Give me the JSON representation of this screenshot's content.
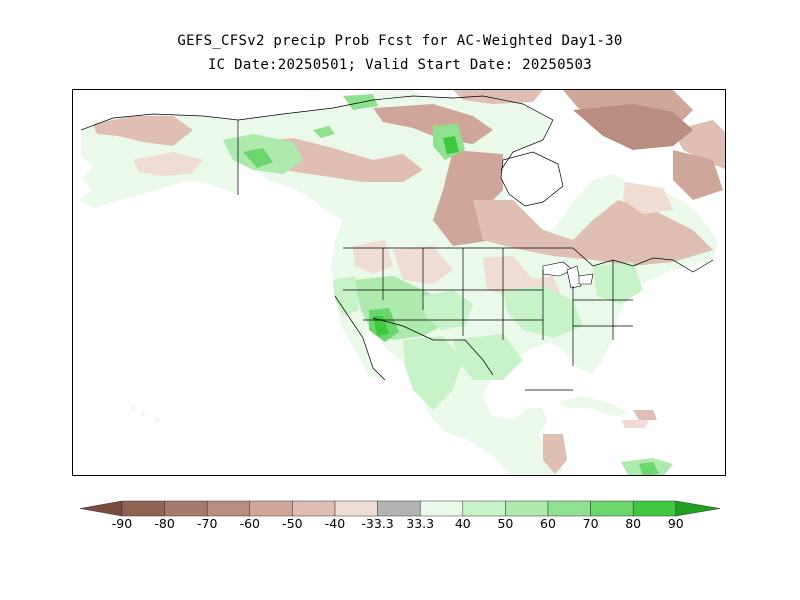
{
  "title": {
    "line1": "GEFS_CFSv2 precip Prob Fcst for AC-Weighted Day1-30",
    "line2": "IC Date:20250501; Valid Start Date: 20250503"
  },
  "map": {
    "region": "North America",
    "variable": "precipitation probability"
  },
  "legend": {
    "ticks": [
      "-90",
      "-80",
      "-70",
      "-60",
      "-50",
      "-40",
      "-33.3",
      "33.3",
      "40",
      "50",
      "60",
      "70",
      "80",
      "90"
    ],
    "colors": {
      "lt_-90": "#7a4a3d",
      "-90_-80": "#8f6254",
      "-80_-70": "#a67b6d",
      "-70_-60": "#b98d80",
      "-60_-50": "#cfa79a",
      "-50_-40": "#dfbfb4",
      "-40_-33.3": "#efdcd4",
      "-33.3_33.3": "#b3b3b3",
      "33.3_40": "#eaf9ea",
      "40_50": "#c8f2c8",
      "50_60": "#aeeaae",
      "60_70": "#8fe08f",
      "70_80": "#6bd66b",
      "80_90": "#3fc83f",
      "gt_90": "#1fa01f"
    }
  }
}
